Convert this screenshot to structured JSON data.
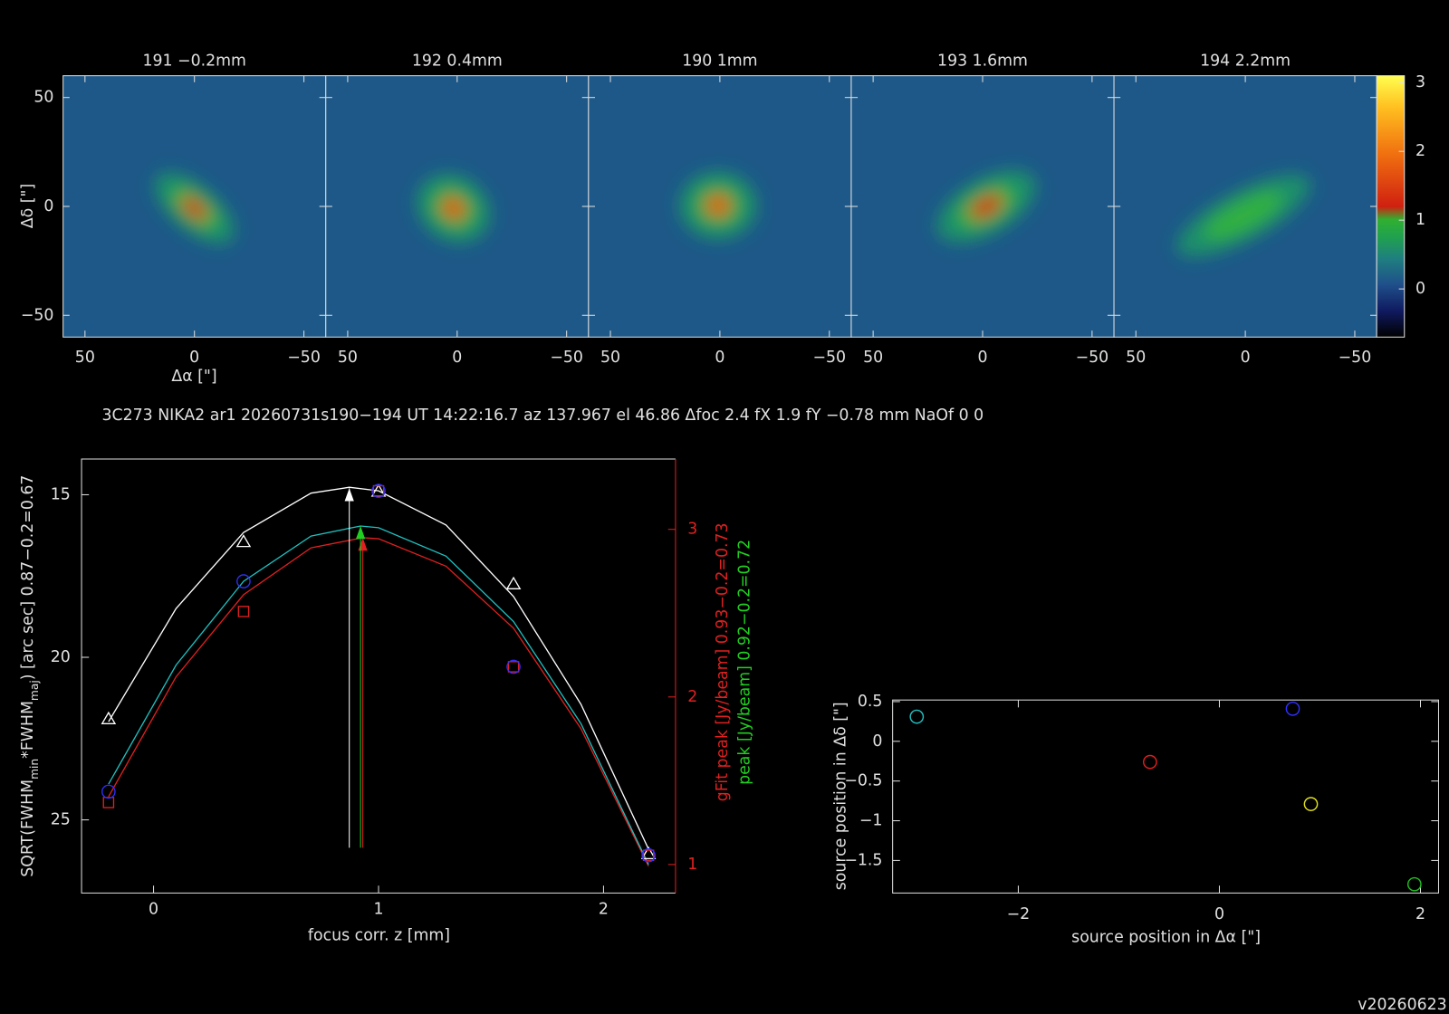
{
  "caption": "3C273 NIKA2 ar1 20260731s190−194 UT 14:22:16.7 az 137.967 el 46.86 Δfoc 2.4 fX 1.9 fY −0.78 mm NaOf 0 0",
  "version": "v20260623",
  "chart_data": [
    {
      "type": "image",
      "titles": [
        "191 −0.2mm",
        "192 0.4mm",
        "190 1mm",
        "193 1.6mm",
        "194 2.2mm"
      ],
      "xlabel": "Δα [\"]",
      "ylabel": "Δδ [\"]",
      "xlim": [
        60,
        -60
      ],
      "xticks": [
        50,
        0,
        {
          "value": -50,
          "label": "−50"
        }
      ],
      "ylim": [
        -60,
        60
      ],
      "yticks": [
        {
          "value": -50,
          "label": "−50"
        },
        0,
        50
      ],
      "zlim": [
        -0.7,
        3.1
      ],
      "zticks": [
        0,
        1,
        2,
        3
      ]
    },
    {
      "type": "line",
      "xlabel": "focus corr. z [mm]",
      "ylabel": [
        "SQRT(FWHM",
        "min",
        "*FWHM",
        "maj",
        ") [arc sec] 0.87−0.2=0.67"
      ],
      "y2label": [
        {
          "text": "gFit peak [Jy/beam] 0.93−0.2=0.73",
          "color": "#e02020"
        },
        {
          "text": "peak [Jy/beam] 0.92−0.2=0.72",
          "color": "#20d020"
        }
      ],
      "xlim": [
        -0.32,
        2.32
      ],
      "xticks": [
        0,
        1,
        2
      ],
      "ylim": [
        27.25,
        13.9
      ],
      "yticks": [
        15,
        20,
        25
      ],
      "y2lim": [
        0.83,
        3.42
      ],
      "y2ticks": [
        1,
        2,
        3
      ],
      "series": [
        {
          "marker": "triangle",
          "color": "#ffffff",
          "x": [
            -0.2,
            0.4,
            1,
            1.6,
            2.2
          ],
          "values": [
            21.9,
            16.45,
            14.9,
            17.75,
            26.05
          ]
        },
        {
          "marker": "square",
          "color": "#e02020",
          "axis": "y2",
          "x": [
            -0.2,
            0.4,
            1,
            1.6,
            2.2
          ],
          "values": [
            1.37,
            2.51,
            3.23,
            2.18,
            1.055
          ]
        },
        {
          "marker": "circle",
          "color": "#3030ff",
          "axis": "y2",
          "x": [
            -0.2,
            0.4,
            1,
            1.6,
            2.2
          ],
          "values": [
            1.435,
            2.69,
            3.23,
            2.18,
            1.055
          ]
        }
      ],
      "fits": [
        {
          "color": "#ffffff",
          "x": [
            -0.2,
            0.1,
            0.4,
            0.7,
            0.87,
            1.0,
            1.3,
            1.6,
            1.9,
            2.2
          ],
          "values": [
            21.98,
            18.5,
            16.16,
            14.95,
            14.77,
            14.88,
            15.93,
            18.13,
            21.45,
            25.9
          ]
        },
        {
          "color": "#e02020",
          "axis": "y2",
          "x": [
            -0.2,
            0.1,
            0.4,
            0.7,
            0.93,
            1.0,
            1.3,
            1.6,
            1.9,
            2.2
          ],
          "values": [
            1.405,
            2.12,
            2.61,
            2.89,
            2.95,
            2.944,
            2.78,
            2.41,
            1.81,
            0.99
          ]
        },
        {
          "color": "#20c0c0",
          "axis": "y2",
          "x": [
            -0.2,
            0.1,
            0.4,
            0.7,
            0.92,
            1.0,
            1.3,
            1.6,
            1.9,
            2.2
          ],
          "values": [
            1.48,
            2.19,
            2.69,
            2.96,
            3.02,
            3.01,
            2.84,
            2.45,
            1.84,
            1.0
          ]
        }
      ],
      "markers": [
        {
          "color": "#ffffff",
          "x": 0.87,
          "value": 14.8
        },
        {
          "color": "#e02020",
          "axis": "y2",
          "x": 0.93,
          "value": 2.95
        },
        {
          "color": "#20d020",
          "axis": "y2",
          "x": 0.92,
          "value": 3.02
        }
      ]
    },
    {
      "type": "scatter",
      "xlabel": "source position in Δα [\"]",
      "ylabel": "source position in Δδ [\"]",
      "xlim": [
        -3.25,
        2.18
      ],
      "xticks": [
        {
          "value": -2,
          "label": "−2"
        },
        0,
        2
      ],
      "ylim": [
        -1.91,
        0.52
      ],
      "yticks": [
        0.5,
        0,
        {
          "value": -0.5,
          "label": "−0.5"
        },
        {
          "value": -1,
          "label": "−1"
        },
        {
          "value": -1.5,
          "label": "−1.5"
        }
      ],
      "x": [
        -3.01,
        -0.69,
        0.73,
        0.91,
        1.94
      ],
      "values": [
        0.31,
        -0.26,
        0.41,
        -0.79,
        -1.8
      ],
      "colors": [
        "#20c0c0",
        "#e02020",
        "#3030ff",
        "#e0e020",
        "#20c020"
      ]
    }
  ]
}
